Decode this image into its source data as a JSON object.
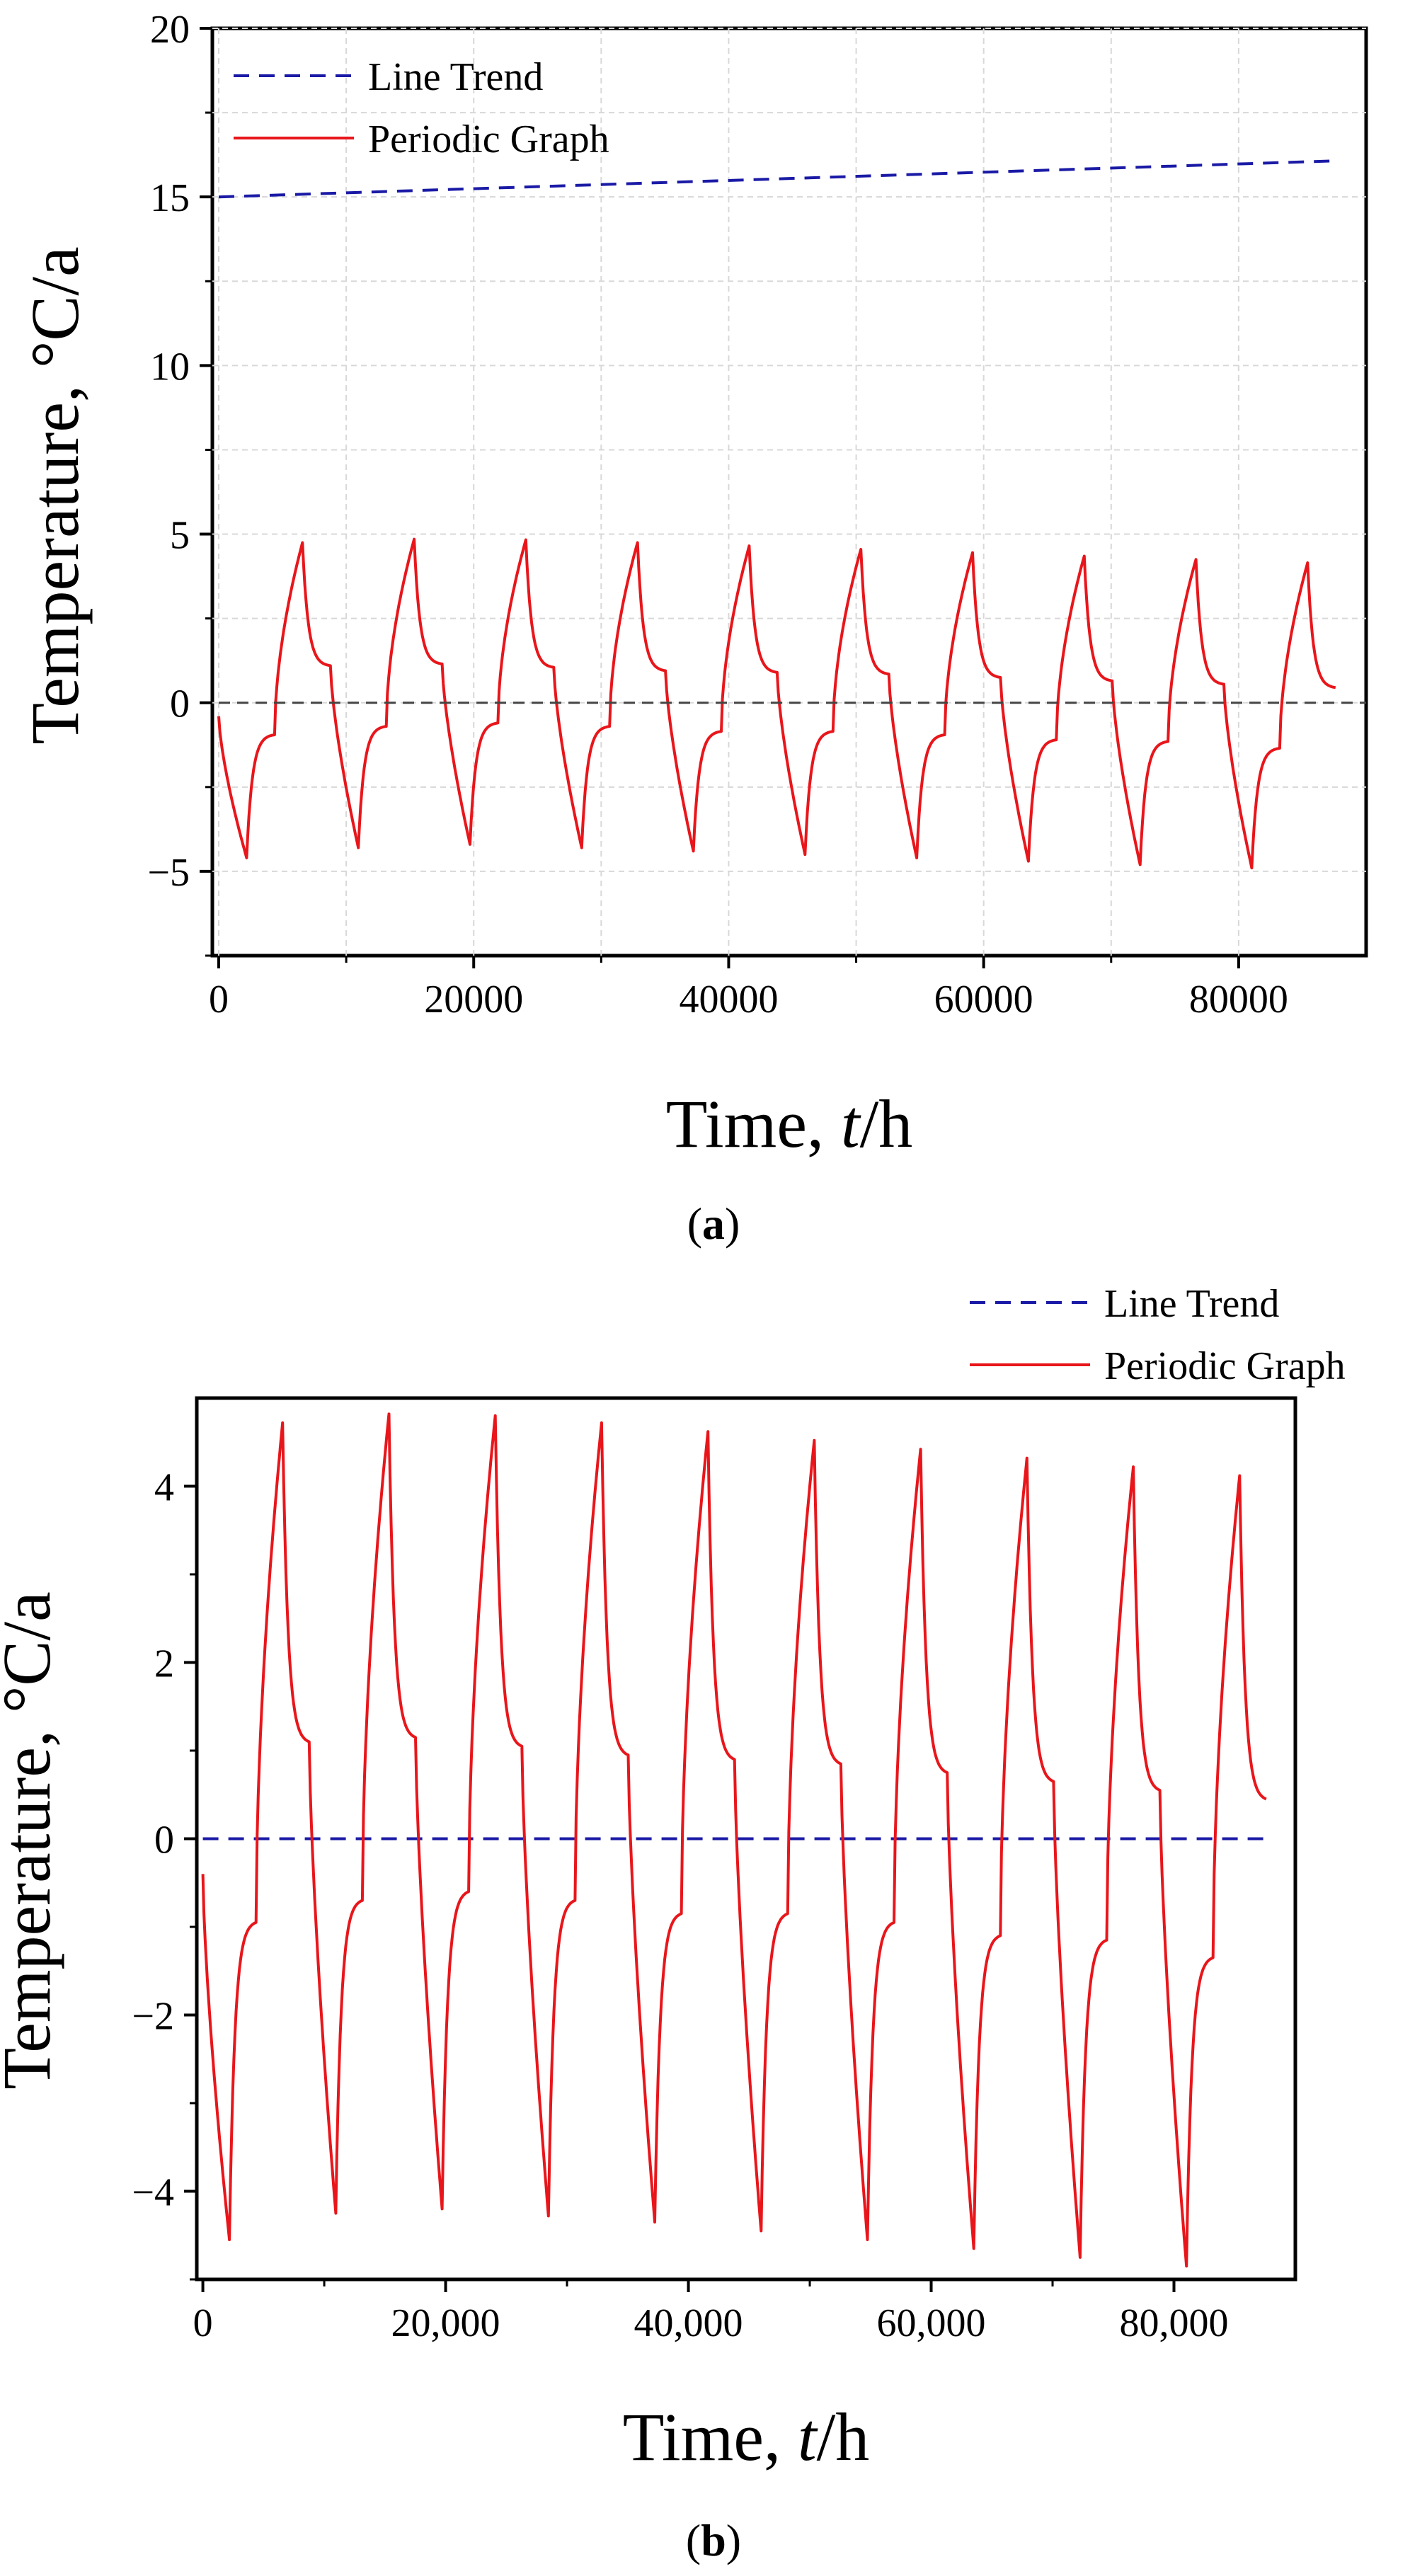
{
  "figure": {
    "caption_a": "a",
    "caption_b": "b",
    "caption_open": "(",
    "caption_close": ")"
  },
  "colors": {
    "trend": "#1a1aa6",
    "periodic": "#e8161b",
    "zero": "#444444",
    "grid": "#d8d8d8"
  },
  "chart_data": [
    {
      "id": "a",
      "type": "line",
      "xlabel_main": "Time, ",
      "xlabel_var": "t",
      "xlabel_unit": "/h",
      "ylabel": "Temperature, °C/a",
      "xlim": [
        -500,
        90000
      ],
      "ylim": [
        -7.5,
        20
      ],
      "xticks": [
        0,
        20000,
        40000,
        60000,
        80000
      ],
      "xtick_labels": [
        "0",
        "20000",
        "40000",
        "60000",
        "80000"
      ],
      "yticks": [
        -5,
        0,
        5,
        10,
        15,
        20
      ],
      "ytick_labels": [
        "−5",
        "0",
        "5",
        "10",
        "15",
        "20"
      ],
      "grid": true,
      "legend_placement": "top-left",
      "legend": [
        "Line Trend",
        "Periodic Graph"
      ],
      "series": [
        {
          "name": "Line Trend",
          "style": "dashed",
          "x": [
            0,
            87600
          ],
          "y": [
            15.0,
            16.07
          ]
        },
        {
          "name": "Periodic Graph",
          "style": "solid",
          "generator": "periodic",
          "period_h": 8760,
          "cycles": 10,
          "x_end": 87600,
          "min_values": [
            -4.6,
            -4.3,
            -4.2,
            -4.3,
            -4.4,
            -4.5,
            -4.6,
            -4.7,
            -4.8,
            -4.9
          ],
          "max_values": [
            4.75,
            4.85,
            4.83,
            4.75,
            4.65,
            4.55,
            4.45,
            4.35,
            4.25,
            4.15
          ],
          "low_plateau": [
            -0.95,
            -0.7,
            -0.6,
            -0.7,
            -0.85,
            -0.85,
            -0.95,
            -1.1,
            -1.15,
            -1.35
          ],
          "high_plateau": [
            1.1,
            1.15,
            1.05,
            0.95,
            0.9,
            0.85,
            0.75,
            0.65,
            0.55,
            0.45
          ]
        },
        {
          "name": "zero",
          "style": "dashed",
          "x": [
            0,
            90000
          ],
          "y": [
            0,
            0
          ]
        }
      ]
    },
    {
      "id": "b",
      "type": "line",
      "xlabel_main": "Time, ",
      "xlabel_var": "t",
      "xlabel_unit": "/h",
      "ylabel": "Temperature, °C/a",
      "xlim": [
        -500,
        90000
      ],
      "ylim": [
        -5,
        5
      ],
      "xticks": [
        0,
        20000,
        40000,
        60000,
        80000
      ],
      "xtick_labels": [
        "0",
        "20,000",
        "40,000",
        "60,000",
        "80,000"
      ],
      "yticks": [
        -4,
        -2,
        0,
        2,
        4
      ],
      "ytick_labels": [
        "−4",
        "−2",
        "0",
        "2",
        "4"
      ],
      "grid": false,
      "legend_placement": "top-right outside",
      "legend": [
        "Line Trend",
        "Periodic Graph"
      ],
      "series": [
        {
          "name": "Line Trend",
          "style": "dashed",
          "x": [
            0,
            87600
          ],
          "y": [
            0,
            0
          ]
        },
        {
          "name": "Periodic Graph",
          "style": "solid",
          "generator": "periodic",
          "period_h": 8760,
          "cycles": 10,
          "x_end": 87600,
          "min_values": [
            -4.55,
            -4.25,
            -4.2,
            -4.28,
            -4.35,
            -4.45,
            -4.55,
            -4.65,
            -4.75,
            -4.85
          ],
          "max_values": [
            4.72,
            4.82,
            4.8,
            4.72,
            4.62,
            4.52,
            4.42,
            4.32,
            4.22,
            4.12
          ],
          "low_plateau": [
            -0.95,
            -0.7,
            -0.6,
            -0.7,
            -0.85,
            -0.85,
            -0.95,
            -1.1,
            -1.15,
            -1.35
          ],
          "high_plateau": [
            1.1,
            1.15,
            1.05,
            0.95,
            0.9,
            0.85,
            0.75,
            0.65,
            0.55,
            0.45
          ]
        }
      ]
    }
  ]
}
